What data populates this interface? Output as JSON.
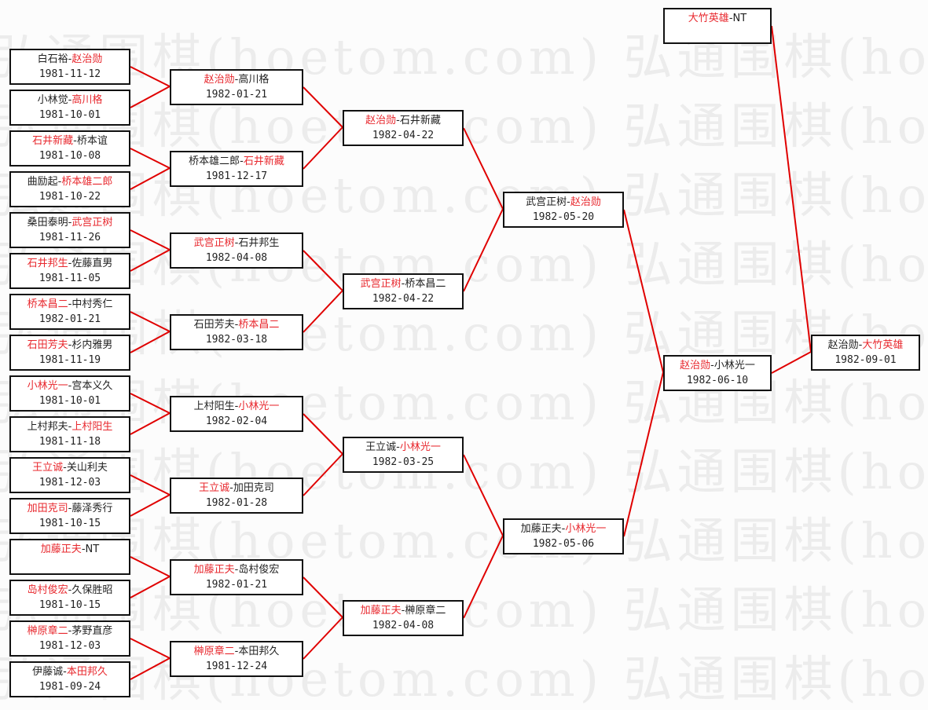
{
  "watermark": "弘通围棋(hoetom.com)",
  "colors": {
    "winner": "#e8282e",
    "line": "#e00000",
    "box_border": "#111111"
  },
  "rounds": [
    [
      {
        "a": "白石裕",
        "b": "赵治勋",
        "winner": "b",
        "date": "1981-11-12"
      },
      {
        "a": "小林觉",
        "b": "高川格",
        "winner": "b",
        "date": "1981-10-01"
      },
      {
        "a": "石井新藏",
        "b": "桥本谊",
        "winner": "a",
        "date": "1981-10-08"
      },
      {
        "a": "曲励起",
        "b": "桥本雄二郎",
        "winner": "b",
        "date": "1981-10-22"
      },
      {
        "a": "桑田泰明",
        "b": "武宫正树",
        "winner": "b",
        "date": "1981-11-26"
      },
      {
        "a": "石井邦生",
        "b": "佐藤直男",
        "winner": "a",
        "date": "1981-11-05"
      },
      {
        "a": "桥本昌二",
        "b": "中村秀仁",
        "winner": "a",
        "date": "1982-01-21"
      },
      {
        "a": "石田芳夫",
        "b": "杉内雅男",
        "winner": "a",
        "date": "1981-11-19"
      },
      {
        "a": "小林光一",
        "b": "宫本义久",
        "winner": "a",
        "date": "1981-10-01"
      },
      {
        "a": "上村邦夫",
        "b": "上村阳生",
        "winner": "b",
        "date": "1981-11-18"
      },
      {
        "a": "王立诚",
        "b": "关山利夫",
        "winner": "a",
        "date": "1981-12-03"
      },
      {
        "a": "加田克司",
        "b": "藤泽秀行",
        "winner": "a",
        "date": "1981-10-15"
      },
      {
        "a": "加藤正夫",
        "b": "NT",
        "winner": "a",
        "date": ""
      },
      {
        "a": "岛村俊宏",
        "b": "久保胜昭",
        "winner": "a",
        "date": "1981-10-15"
      },
      {
        "a": "榊原章二",
        "b": "茅野直彦",
        "winner": "a",
        "date": "1981-12-03"
      },
      {
        "a": "伊藤诚",
        "b": "本田邦久",
        "winner": "b",
        "date": "1981-09-24"
      }
    ],
    [
      {
        "a": "赵治勋",
        "b": "高川格",
        "winner": "a",
        "date": "1982-01-21"
      },
      {
        "a": "桥本雄二郎",
        "b": "石井新藏",
        "winner": "b",
        "date": "1981-12-17"
      },
      {
        "a": "武宫正树",
        "b": "石井邦生",
        "winner": "a",
        "date": "1982-04-08"
      },
      {
        "a": "石田芳夫",
        "b": "桥本昌二",
        "winner": "b",
        "date": "1982-03-18"
      },
      {
        "a": "上村阳生",
        "b": "小林光一",
        "winner": "b",
        "date": "1982-02-04"
      },
      {
        "a": "王立诚",
        "b": "加田克司",
        "winner": "a",
        "date": "1982-01-28"
      },
      {
        "a": "加藤正夫",
        "b": "岛村俊宏",
        "winner": "a",
        "date": "1982-01-21"
      },
      {
        "a": "榊原章二",
        "b": "本田邦久",
        "winner": "a",
        "date": "1981-12-24"
      }
    ],
    [
      {
        "a": "赵治勋",
        "b": "石井新藏",
        "winner": "a",
        "date": "1982-04-22"
      },
      {
        "a": "武宫正树",
        "b": "桥本昌二",
        "winner": "a",
        "date": "1982-04-22"
      },
      {
        "a": "王立诚",
        "b": "小林光一",
        "winner": "b",
        "date": "1982-03-25"
      },
      {
        "a": "加藤正夫",
        "b": "榊原章二",
        "winner": "a",
        "date": "1982-04-08"
      }
    ],
    [
      {
        "a": "武宫正树",
        "b": "赵治勋",
        "winner": "b",
        "date": "1982-05-20"
      },
      {
        "a": "加藤正夫",
        "b": "小林光一",
        "winner": "b",
        "date": "1982-05-06"
      }
    ],
    [
      {
        "a": "赵治勋",
        "b": "小林光一",
        "winner": "a",
        "date": "1982-06-10"
      }
    ]
  ],
  "seed": {
    "a": "大竹英雄",
    "b": "NT",
    "winner": "a",
    "date": ""
  },
  "final": {
    "a": "赵治勋",
    "b": "大竹英雄",
    "winner": "b",
    "date": "1982-09-01"
  }
}
